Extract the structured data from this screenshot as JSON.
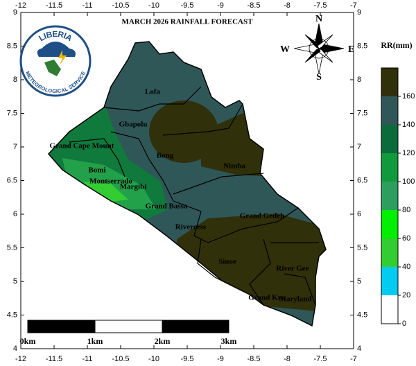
{
  "title": "MARCH 2026 RAINFALL FORECAST",
  "logo": {
    "name": "LIBERIA",
    "subtitle": "METEOROLOGICAL SERVICE"
  },
  "compass": {
    "north": "N",
    "east": "E",
    "south": "S",
    "west": "W"
  },
  "lon_range": [
    -12,
    -7
  ],
  "lat_range": [
    4,
    9
  ],
  "lon_ticks": [
    -12,
    -11.5,
    -11,
    -10.5,
    -10,
    -9.5,
    -9,
    -8.5,
    -8,
    -7.5,
    -7
  ],
  "lat_ticks": [
    4,
    4.5,
    5,
    5.5,
    6,
    6.5,
    7,
    7.5,
    8,
    8.5,
    9
  ],
  "counties": [
    "Lofa",
    "Gbapolu",
    "Grand Cape Mount",
    "Bong",
    "Nimba",
    "Bomi",
    "Montserrado",
    "Margibi",
    "Grand Bassa",
    "Rivercess",
    "Grand Gedeh",
    "Sinoe",
    "River Gee",
    "Grand Kru",
    "Maryland"
  ],
  "legend": {
    "title": "RR(mm)",
    "ticks": [
      0,
      20,
      40,
      60,
      80,
      100,
      120,
      140,
      160
    ],
    "colors": [
      "#ffffff",
      "#00ccf2",
      "#33cc33",
      "#00ee00",
      "#2e9e5e",
      "#119a3c",
      "#0b6b3a",
      "#2f5757",
      "#30300a"
    ]
  },
  "scale_bar": [
    "0km",
    "1km",
    "2km",
    "3km"
  ]
}
